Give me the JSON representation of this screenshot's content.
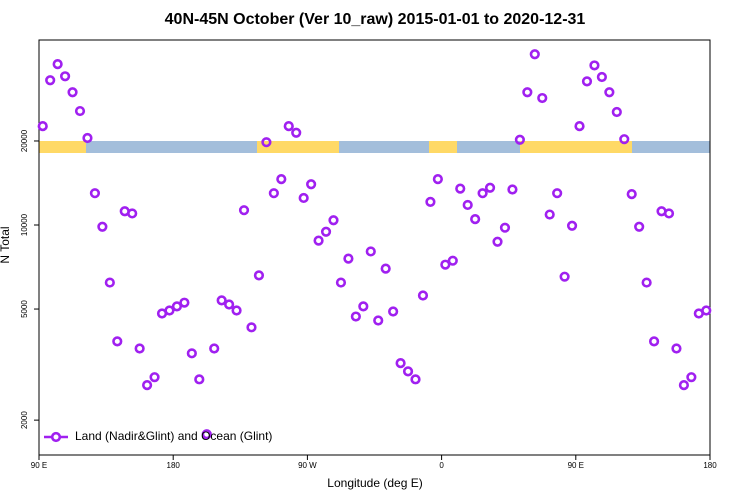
{
  "chart_data": {
    "type": "scatter",
    "title": "40N-45N October (Ver 10_raw)   2015-01-01 to 2020-12-31",
    "xlabel": "Longitude (deg E)",
    "ylabel": "N Total",
    "xlim": [
      90,
      540
    ],
    "xticks": [
      {
        "value": 90,
        "label": "90 E"
      },
      {
        "value": 180,
        "label": "180"
      },
      {
        "value": 270,
        "label": "90 W"
      },
      {
        "value": 360,
        "label": "0"
      },
      {
        "value": 450,
        "label": "90 E"
      },
      {
        "value": 540,
        "label": "180"
      }
    ],
    "ylim": [
      1500,
      46000
    ],
    "yticks": [
      2000,
      5000,
      10000,
      20000
    ],
    "log_y": true,
    "legend": "bottom-left",
    "series": [
      {
        "name": "Land (Nadir&Glint) and Ocean (Glint)",
        "color": "#a020f0",
        "x": [
          92.5,
          97.5,
          102.5,
          107.5,
          112.5,
          117.5,
          122.5,
          127.5,
          132.5,
          137.5,
          142.5,
          147.5,
          152.5,
          157.5,
          162.5,
          167.5,
          172.5,
          177.5,
          182.5,
          187.5,
          192.5,
          197.5,
          202.5,
          207.5,
          212.5,
          217.5,
          222.5,
          227.5,
          232.5,
          237.5,
          242.5,
          247.5,
          252.5,
          257.5,
          262.5,
          267.5,
          272.5,
          277.5,
          282.5,
          287.5,
          292.5,
          297.5,
          302.5,
          307.5,
          312.5,
          317.5,
          322.5,
          327.5,
          332.5,
          337.5,
          342.5,
          347.5,
          352.5,
          357.5,
          362.5,
          367.5,
          372.5,
          377.5,
          382.5,
          387.5,
          392.5,
          397.5,
          402.5,
          407.5,
          412.5,
          417.5,
          422.5,
          427.5,
          432.5,
          437.5,
          442.5,
          447.5,
          452.5,
          457.5,
          462.5,
          467.5,
          472.5,
          477.5,
          482.5,
          487.5,
          492.5,
          497.5,
          502.5,
          507.5,
          512.5,
          517.5,
          522.5,
          527.5,
          532.5,
          537.5
        ],
        "values": [
          22600,
          33000,
          37700,
          34100,
          29900,
          25600,
          20500,
          13000,
          9860,
          6220,
          3830,
          11200,
          11000,
          3610,
          2670,
          2850,
          4820,
          4940,
          5110,
          5270,
          3470,
          2800,
          1780,
          3610,
          5370,
          5190,
          4940,
          11300,
          4300,
          6600,
          19800,
          13000,
          14600,
          22600,
          21400,
          12500,
          14000,
          8790,
          9460,
          10400,
          6220,
          7580,
          4700,
          5110,
          8040,
          4550,
          6980,
          4900,
          3200,
          2990,
          2800,
          5590,
          12100,
          14600,
          7210,
          7450,
          13500,
          11800,
          10500,
          13000,
          13600,
          8710,
          9780,
          13400,
          20200,
          29900,
          40900,
          28500,
          10900,
          13000,
          6530,
          9940,
          22600,
          32700,
          37300,
          33900,
          29900,
          25400,
          20300,
          12900,
          9860,
          6220,
          3830,
          11200,
          11000,
          3610,
          2670,
          2850,
          4820,
          4940
        ]
      }
    ]
  }
}
